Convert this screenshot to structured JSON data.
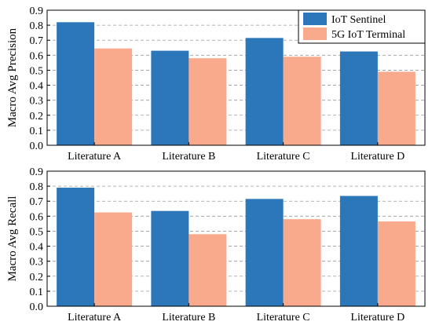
{
  "colors": {
    "series_a": "#2b77b9",
    "series_b": "#f9aa8c",
    "grid": "#9a9a9a",
    "axis": "#000000"
  },
  "chart_data": [
    {
      "type": "bar",
      "categories": [
        "Literature A",
        "Literature B",
        "Literature C",
        "Literature D"
      ],
      "series": [
        {
          "name": "IoT Sentinel",
          "values": [
            0.82,
            0.63,
            0.715,
            0.625
          ]
        },
        {
          "name": "5G IoT Terminal",
          "values": [
            0.645,
            0.58,
            0.59,
            0.49
          ]
        }
      ],
      "ylabel": "Macro Avg Precision",
      "ylim": [
        0,
        0.9
      ],
      "yticks": [
        "0.0",
        "0.1",
        "0.2",
        "0.3",
        "0.4",
        "0.5",
        "0.6",
        "0.7",
        "0.8",
        "0.9"
      ],
      "grid": "horizontal dashed",
      "legend": "top-right"
    },
    {
      "type": "bar",
      "categories": [
        "Literature A",
        "Literature B",
        "Literature C",
        "Literature D"
      ],
      "series": [
        {
          "name": "IoT Sentinel",
          "values": [
            0.79,
            0.635,
            0.715,
            0.735
          ]
        },
        {
          "name": "5G IoT Terminal",
          "values": [
            0.625,
            0.48,
            0.58,
            0.565
          ]
        }
      ],
      "ylabel": "Macro Avg Recall",
      "ylim": [
        0,
        0.9
      ],
      "yticks": [
        "0.0",
        "0.1",
        "0.2",
        "0.3",
        "0.4",
        "0.5",
        "0.6",
        "0.7",
        "0.8",
        "0.9"
      ],
      "grid": "horizontal dashed",
      "legend": "none"
    }
  ]
}
